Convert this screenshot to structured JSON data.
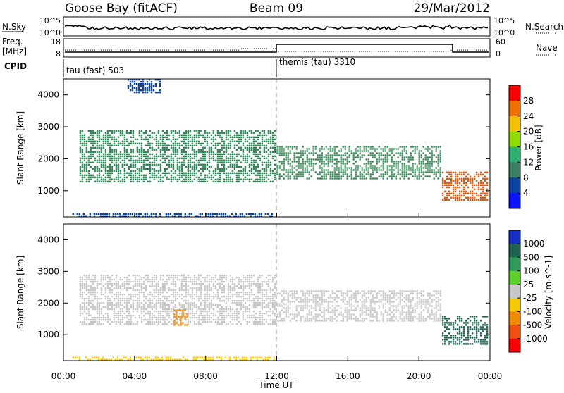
{
  "header": {
    "station": "Goose Bay (fitACF)",
    "beam": "Beam 09",
    "date": "29/Mar/2012"
  },
  "top_strips": {
    "nsky_label": "N.Sky",
    "nsky_ticks": [
      "10^5",
      "10^0"
    ],
    "nsearch_label": "N.Search",
    "nsearch_ticks": [
      "10^5",
      "10^0"
    ],
    "freq_label_1": "Freq.",
    "freq_label_2": "[MHz]",
    "freq_ticks": [
      "18",
      "8"
    ],
    "nave_label": "Nave",
    "nave_ticks": [
      "60",
      "0"
    ],
    "cpid_label": "CPID",
    "cpid_segments": [
      {
        "label": "tau (fast) 503",
        "start_hour": 0
      },
      {
        "label": "themis (tau) 3310",
        "start_hour": 12
      }
    ]
  },
  "chart_data": [
    {
      "type": "heatmap",
      "parameter": "Power",
      "ylabel": "Slant Range [km]",
      "ylim": [
        180,
        4500
      ],
      "yticks": [
        "4000",
        "3000",
        "2000",
        "1000"
      ],
      "xlim_hours": [
        0,
        24
      ],
      "colorbar_label": "Power [dB]",
      "colorbar_ticks": [
        "28",
        "24",
        "20",
        "16",
        "12",
        "8",
        "4"
      ],
      "colorbar_colors": [
        "#ff0000",
        "#f07000",
        "#f4c000",
        "#90dd00",
        "#2eb070",
        "#3b8060",
        "#0a44a0",
        "#0a14ff"
      ],
      "echo_regions": [
        {
          "t0": 0.9,
          "t1": 11.9,
          "r0": 1300,
          "r1": 2900,
          "color": "#2e8b57"
        },
        {
          "t0": 12.0,
          "t1": 21.2,
          "r0": 1400,
          "r1": 2400,
          "color": "#3b8a58"
        },
        {
          "t0": 21.3,
          "t1": 23.9,
          "r0": 700,
          "r1": 1600,
          "color": "#e05a10"
        },
        {
          "t0": 0.5,
          "t1": 11.9,
          "r0": 200,
          "r1": 300,
          "color": "#0a44a0"
        },
        {
          "t0": 3.6,
          "t1": 5.4,
          "r0": 4100,
          "r1": 4500,
          "color": "#0a44a0"
        }
      ]
    },
    {
      "type": "heatmap",
      "parameter": "Velocity",
      "ylabel": "Slant Range [km]",
      "ylim": [
        180,
        4500
      ],
      "yticks": [
        "4000",
        "3000",
        "2000",
        "1000"
      ],
      "xlim_hours": [
        0,
        24
      ],
      "xlabel": "Time UT",
      "xticks": [
        "00:00",
        "04:00",
        "08:00",
        "12:00",
        "16:00",
        "20:00",
        "00:00"
      ],
      "colorbar_label": "Velocity [m s^-1]",
      "colorbar_ticks": [
        "1000",
        "500",
        "100",
        "25",
        "-25",
        "-100",
        "-500",
        "-1000"
      ],
      "colorbar_colors": [
        "#1432c8",
        "#1e6450",
        "#2e9b5a",
        "#5dd02a",
        "#c8c8c8",
        "#f6c800",
        "#f08a00",
        "#f05010",
        "#ff0000"
      ],
      "echo_regions": [
        {
          "t0": 0.9,
          "t1": 11.9,
          "r0": 1300,
          "r1": 2900,
          "color": "#c8c8c8"
        },
        {
          "t0": 12.0,
          "t1": 21.2,
          "r0": 1400,
          "r1": 2400,
          "color": "#c8c8c8"
        },
        {
          "t0": 21.3,
          "t1": 23.9,
          "r0": 700,
          "r1": 1600,
          "color": "#1e6450"
        },
        {
          "t0": 6.2,
          "t1": 7.0,
          "r0": 1300,
          "r1": 1800,
          "color": "#f08a00"
        },
        {
          "t0": 0.5,
          "t1": 11.9,
          "r0": 200,
          "r1": 300,
          "color": "#f6c800"
        }
      ]
    }
  ]
}
